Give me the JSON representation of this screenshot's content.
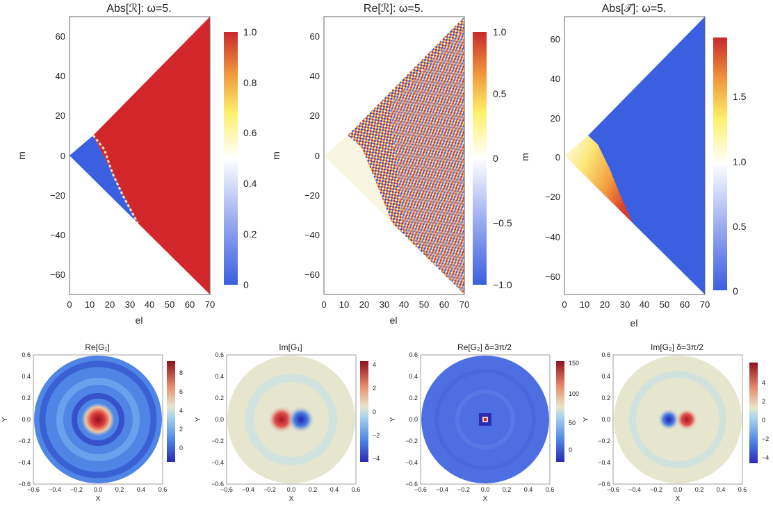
{
  "chart_data": [
    {
      "type": "heatmap",
      "title": "Abs[ℛ]: ω=5.",
      "xlabel": "el",
      "ylabel": "m",
      "xlim": [
        0,
        70
      ],
      "ylim": [
        -70,
        70
      ],
      "xticks": [
        "0",
        "10",
        "20",
        "30",
        "40",
        "50",
        "60",
        "70"
      ],
      "yticks": [
        "60",
        "40",
        "20",
        "0",
        "−20",
        "−40",
        "−60"
      ],
      "colorbar": {
        "min": 0,
        "max": 1.0,
        "ticks": [
          "1.0",
          "0.8",
          "0.6",
          "0.4",
          "0.2",
          "0"
        ]
      },
      "regions": [
        {
          "description": "near-zero wedge",
          "value": 0,
          "vertices": [
            [
              0,
              0
            ],
            [
              12,
              10
            ],
            [
              34,
              -34
            ]
          ]
        },
        {
          "description": "saturated region",
          "value": 1.0,
          "vertices": [
            [
              12,
              10
            ],
            [
              70,
              70
            ],
            [
              70,
              -70
            ],
            [
              34,
              -34
            ]
          ]
        }
      ]
    },
    {
      "type": "heatmap",
      "title": "Re[ℛ]: ω=5.",
      "xlabel": "el",
      "ylabel": "m",
      "xlim": [
        0,
        70
      ],
      "ylim": [
        -70,
        70
      ],
      "xticks": [
        "0",
        "10",
        "20",
        "30",
        "40",
        "50",
        "60",
        "70"
      ],
      "yticks": [
        "60",
        "40",
        "20",
        "0",
        "−20",
        "−40",
        "−60"
      ],
      "colorbar": {
        "min": -1.0,
        "max": 1.0,
        "ticks": [
          "1.0",
          "0.5",
          "0",
          "−0.5",
          "−1.0"
        ]
      },
      "regions": [
        {
          "description": "flat region",
          "value": 0.2,
          "vertices": [
            [
              0,
              0
            ],
            [
              12,
              10
            ],
            [
              34,
              -34
            ]
          ]
        },
        {
          "description": "oscillating region",
          "value_range": [
            -1.0,
            1.0
          ],
          "vertices": [
            [
              12,
              10
            ],
            [
              70,
              70
            ],
            [
              70,
              -70
            ],
            [
              34,
              -34
            ]
          ]
        }
      ]
    },
    {
      "type": "heatmap",
      "title": "Abs[𝒯̃]: ω=5.",
      "xlabel": "el",
      "ylabel": "m",
      "xlim": [
        0,
        70
      ],
      "ylim": [
        -70,
        70
      ],
      "xticks": [
        "0",
        "10",
        "20",
        "30",
        "40",
        "50",
        "60",
        "70"
      ],
      "yticks": [
        "60",
        "40",
        "20",
        "0",
        "−20",
        "−40",
        "−60"
      ],
      "colorbar": {
        "min": 0,
        "max": 1.95,
        "ticks": [
          "1.5",
          "1.0",
          "0.5",
          "0"
        ]
      },
      "regions": [
        {
          "description": "transmission wedge",
          "value_range": [
            1.0,
            1.95
          ],
          "vertices": [
            [
              0,
              0
            ],
            [
              12,
              10
            ],
            [
              34,
              -34
            ]
          ]
        },
        {
          "description": "zero region",
          "value": 0,
          "vertices": [
            [
              12,
              10
            ],
            [
              70,
              70
            ],
            [
              70,
              -70
            ],
            [
              34,
              -34
            ]
          ]
        }
      ]
    },
    {
      "type": "heatmap",
      "title": "Re[G₁]",
      "xlabel": "X",
      "ylabel": "Y",
      "xlim": [
        -0.6,
        0.6
      ],
      "ylim": [
        -0.6,
        0.6
      ],
      "xticks": [
        "−0.6",
        "−0.4",
        "−0.2",
        "0.0",
        "0.2",
        "0.4",
        "0.6"
      ],
      "yticks": [
        "0.6",
        "0.4",
        "0.2",
        "0.0",
        "−0.2",
        "−0.4",
        "−0.6"
      ],
      "colorbar": {
        "min": -1.5,
        "max": 9,
        "ticks": [
          "8",
          "6",
          "4",
          "2",
          "0"
        ]
      },
      "domain_radius": 0.6,
      "features": [
        {
          "description": "central peak",
          "x": 0.0,
          "y": 0.0,
          "value": 8.5
        }
      ]
    },
    {
      "type": "heatmap",
      "title": "Im[G₁]",
      "xlabel": "X",
      "ylabel": "Y",
      "xlim": [
        -0.6,
        0.6
      ],
      "ylim": [
        -0.6,
        0.6
      ],
      "xticks": [
        "−0.6",
        "−0.4",
        "−0.2",
        "0.0",
        "0.2",
        "0.4",
        "0.6"
      ],
      "yticks": [
        "0.6",
        "0.4",
        "0.2",
        "0.0",
        "−0.2",
        "−0.4",
        "−0.6"
      ],
      "colorbar": {
        "min": -4.5,
        "max": 4.5,
        "ticks": [
          "4",
          "2",
          "0",
          "−2",
          "−4"
        ]
      },
      "domain_radius": 0.6,
      "features": [
        {
          "description": "positive lobe",
          "x": -0.07,
          "y": 0.0,
          "value": 4.2
        },
        {
          "description": "negative lobe",
          "x": 0.07,
          "y": 0.0,
          "value": -4.2
        }
      ]
    },
    {
      "type": "heatmap",
      "title": "Re[G₂] δ=3π/2",
      "xlabel": "X",
      "ylabel": "Y",
      "xlim": [
        -0.6,
        0.6
      ],
      "ylim": [
        -0.6,
        0.6
      ],
      "xticks": [
        "−0.6",
        "−0.4",
        "−0.2",
        "0.0",
        "0.2",
        "0.4",
        "0.6"
      ],
      "yticks": [
        "0.6",
        "0.4",
        "0.2",
        "0.0",
        "−0.2",
        "−0.4",
        "−0.6"
      ],
      "colorbar": {
        "min": -20,
        "max": 155,
        "ticks": [
          "150",
          "100",
          "50",
          "0"
        ]
      },
      "domain_radius": 0.6,
      "features": [
        {
          "description": "central spike",
          "x": 0.0,
          "y": 0.0,
          "value": 150
        }
      ]
    },
    {
      "type": "heatmap",
      "title": "Im[G₂] δ=3π/2",
      "xlabel": "X",
      "ylabel": "Y",
      "xlim": [
        -0.6,
        0.6
      ],
      "ylim": [
        -0.6,
        0.6
      ],
      "xticks": [
        "−0.6",
        "−0.4",
        "−0.2",
        "0.0",
        "0.2",
        "0.4",
        "0.6"
      ],
      "yticks": [
        "0.6",
        "0.4",
        "0.2",
        "0.0",
        "−0.2",
        "−0.4",
        "−0.6"
      ],
      "colorbar": {
        "min": -5.5,
        "max": 5.5,
        "ticks": [
          "4",
          "2",
          "0",
          "−2",
          "−4"
        ]
      },
      "domain_radius": 0.6,
      "features": [
        {
          "description": "negative lobe",
          "x": -0.06,
          "y": 0.0,
          "value": -5.0
        },
        {
          "description": "positive lobe",
          "x": 0.06,
          "y": 0.0,
          "value": 5.0
        }
      ]
    }
  ]
}
